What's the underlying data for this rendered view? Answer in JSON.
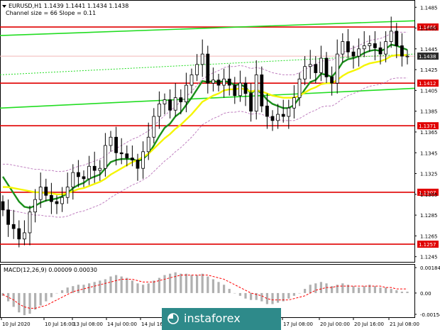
{
  "header": {
    "symbol_line": "EURUSD,H1  1.1439 1.1441 1.1434 1.1438",
    "indicator_line": "Channel size = 66 Slope = 0.11"
  },
  "watermark": "instaforex",
  "colors": {
    "level_line": "#e00000",
    "channel_line": "#22dd22",
    "ma_fast": "#1a8f1a",
    "ma_slow": "#f5f500",
    "envelope": "#c080c0",
    "candle": "#000000",
    "macd_signal": "#ff0000",
    "macd_hist": "#b0b0b0",
    "current_price_bg": "#2b2b2b",
    "watermark_bg": "#2e8a8a"
  },
  "chart_data": [
    {
      "type": "line",
      "title": "EURUSD,H1",
      "price_axis_ticks": [
        "1.1485",
        "1.1465",
        "1.1445",
        "1.1425",
        "1.1405",
        "1.1385",
        "1.1365",
        "1.1345",
        "1.1325",
        "1.1305",
        "1.1285",
        "1.1265",
        "1.1245"
      ],
      "ylim": [
        1.124,
        1.1492
      ],
      "time_axis_ticks": [
        "10 Jul 2020",
        "10 Jul 16:00",
        "13 Jul 08:00",
        "14 Jul 00:00",
        "14 Jul 16:00",
        "17 Jul 08:00",
        "20 Jul 00:00",
        "20 Jul 16:00",
        "21 Jul 08:00"
      ],
      "horizontal_levels": [
        {
          "label": "1.1466",
          "value": 1.1466
        },
        {
          "label": "1.1412",
          "value": 1.1412
        },
        {
          "label": "1.1371",
          "value": 1.1371
        },
        {
          "label": "1.1307",
          "value": 1.1307
        },
        {
          "label": "1.1257",
          "value": 1.1257
        }
      ],
      "current_price": {
        "label": "1.1438",
        "value": 1.1438
      },
      "closes": [
        1.129,
        1.1276,
        1.1272,
        1.1262,
        1.1268,
        1.1288,
        1.13,
        1.1312,
        1.1304,
        1.1298,
        1.1296,
        1.1302,
        1.1312,
        1.1326,
        1.1322,
        1.132,
        1.1332,
        1.1328,
        1.133,
        1.1352,
        1.136,
        1.1345,
        1.1344,
        1.134,
        1.1338,
        1.133,
        1.1346,
        1.136,
        1.138,
        1.1392,
        1.1396,
        1.1386,
        1.1398,
        1.1394,
        1.141,
        1.142,
        1.143,
        1.144,
        1.1412,
        1.1415,
        1.141,
        1.1416,
        1.141,
        1.14,
        1.1412,
        1.1402,
        1.1385,
        1.142,
        1.139,
        1.138,
        1.1376,
        1.1382,
        1.138,
        1.1388,
        1.1398,
        1.1416,
        1.1428,
        1.143,
        1.1422,
        1.1436,
        1.1418,
        1.1412,
        1.144,
        1.1452,
        1.1442,
        1.1438,
        1.1445,
        1.1448,
        1.145,
        1.1446,
        1.144,
        1.1452,
        1.1462,
        1.1448,
        1.1438,
        1.1438
      ],
      "series": [
        {
          "name": "fast MA",
          "values": [
            1.1322,
            1.1314,
            1.1306,
            1.1298,
            1.1293,
            1.1292,
            1.1294,
            1.1297,
            1.1299,
            1.13,
            1.1301,
            1.1303,
            1.1306,
            1.1311,
            1.1314,
            1.1316,
            1.132,
            1.1322,
            1.1324,
            1.133,
            1.1336,
            1.1338,
            1.1339,
            1.1339,
            1.1339,
            1.1337,
            1.1339,
            1.1344,
            1.1352,
            1.1361,
            1.1369,
            1.1373,
            1.138,
            1.1384,
            1.1391,
            1.1398,
            1.1406,
            1.1414,
            1.1413,
            1.1414,
            1.1413,
            1.1414,
            1.1413,
            1.141,
            1.1411,
            1.1408,
            1.1402,
            1.1406,
            1.1402,
            1.1396,
            1.1392,
            1.139,
            1.1388,
            1.1388,
            1.1391,
            1.1398,
            1.1406,
            1.1413,
            1.1415,
            1.1421,
            1.142,
            1.1418,
            1.1424,
            1.1432,
            1.1435,
            1.1436,
            1.1438,
            1.1441,
            1.1443,
            1.1444,
            1.1443,
            1.1445,
            1.1449,
            1.1448,
            1.1446,
            1.1444
          ]
        },
        {
          "name": "slow MA",
          "values": [
            1.1312,
            1.1312,
            1.1311,
            1.131,
            1.1309,
            1.1308,
            1.1307,
            1.1307,
            1.1306,
            1.1306,
            1.1305,
            1.1305,
            1.1306,
            1.1308,
            1.131,
            1.1311,
            1.1313,
            1.1315,
            1.1317,
            1.132,
            1.1324,
            1.1327,
            1.133,
            1.1333,
            1.1336,
            1.1338,
            1.1341,
            1.1344,
            1.1349,
            1.1354,
            1.1359,
            1.1363,
            1.1368,
            1.1372,
            1.1377,
            1.1382,
            1.1388,
            1.1394,
            1.1397,
            1.14,
            1.1402,
            1.1405,
            1.1406,
            1.1406,
            1.1407,
            1.1406,
            1.1404,
            1.1405,
            1.1404,
            1.1402,
            1.14,
            1.1399,
            1.1398,
            1.1398,
            1.1398,
            1.14,
            1.1403,
            1.1406,
            1.1408,
            1.1411,
            1.1412,
            1.1412,
            1.1415,
            1.1419,
            1.1422,
            1.1424,
            1.1426,
            1.1429,
            1.1431,
            1.1432,
            1.1433,
            1.1435,
            1.1438,
            1.1439,
            1.1439,
            1.1439
          ]
        }
      ]
    },
    {
      "type": "bar",
      "title": "MACD(12,26,9) 0.00009 0.00030",
      "ticks": [
        "0.00184",
        "0.00",
        "-0.00154"
      ],
      "ylim": [
        -0.00175,
        0.00205
      ],
      "histogram": [
        -0.0002,
        -0.0006,
        -0.001,
        -0.0014,
        -0.0016,
        -0.0015,
        -0.0012,
        -0.0009,
        -0.0006,
        -0.0003,
        0.0,
        0.0002,
        0.0004,
        0.0005,
        0.0006,
        0.0006,
        0.0007,
        0.0008,
        0.0009,
        0.001,
        0.0012,
        0.0013,
        0.0012,
        0.0011,
        0.0009,
        0.0007,
        0.0006,
        0.0007,
        0.0009,
        0.0011,
        0.0013,
        0.0014,
        0.0015,
        0.0014,
        0.0014,
        0.0013,
        0.0013,
        0.0014,
        0.0012,
        0.001,
        0.0008,
        0.0006,
        0.0003,
        0.0,
        -0.0002,
        -0.0004,
        -0.0005,
        -0.0005,
        -0.0006,
        -0.0008,
        -0.0008,
        -0.0007,
        -0.0006,
        -0.0004,
        -0.0002,
        0.0,
        0.0003,
        0.0006,
        0.0007,
        0.0008,
        0.0007,
        0.0005,
        0.0006,
        0.0007,
        0.0006,
        0.0005,
        0.0004,
        0.0005,
        0.0006,
        0.0005,
        0.0004,
        0.0004,
        0.0003,
        0.0002,
        0.0001,
        0.0001
      ],
      "signal": [
        -0.0001,
        -0.0003,
        -0.0005,
        -0.0008,
        -0.001,
        -0.0011,
        -0.0011,
        -0.001,
        -0.0009,
        -0.0007,
        -0.0005,
        -0.0003,
        -0.0001,
        0.0001,
        0.0002,
        0.0003,
        0.0004,
        0.0005,
        0.0006,
        0.0007,
        0.0008,
        0.0009,
        0.001,
        0.001,
        0.001,
        0.0009,
        0.0008,
        0.0008,
        0.0008,
        0.0009,
        0.001,
        0.0011,
        0.0012,
        0.0013,
        0.0013,
        0.0013,
        0.0013,
        0.0013,
        0.0013,
        0.0012,
        0.0011,
        0.001,
        0.0008,
        0.0006,
        0.0004,
        0.0002,
        0.0,
        -0.0001,
        -0.0002,
        -0.0004,
        -0.0005,
        -0.0005,
        -0.0005,
        -0.0005,
        -0.0004,
        -0.0003,
        -0.0002,
        0.0,
        0.0002,
        0.0003,
        0.0004,
        0.0004,
        0.0005,
        0.0005,
        0.0005,
        0.0005,
        0.0005,
        0.0005,
        0.0005,
        0.0005,
        0.0005,
        0.0004,
        0.0004,
        0.0003,
        0.0003,
        0.0003
      ]
    }
  ]
}
